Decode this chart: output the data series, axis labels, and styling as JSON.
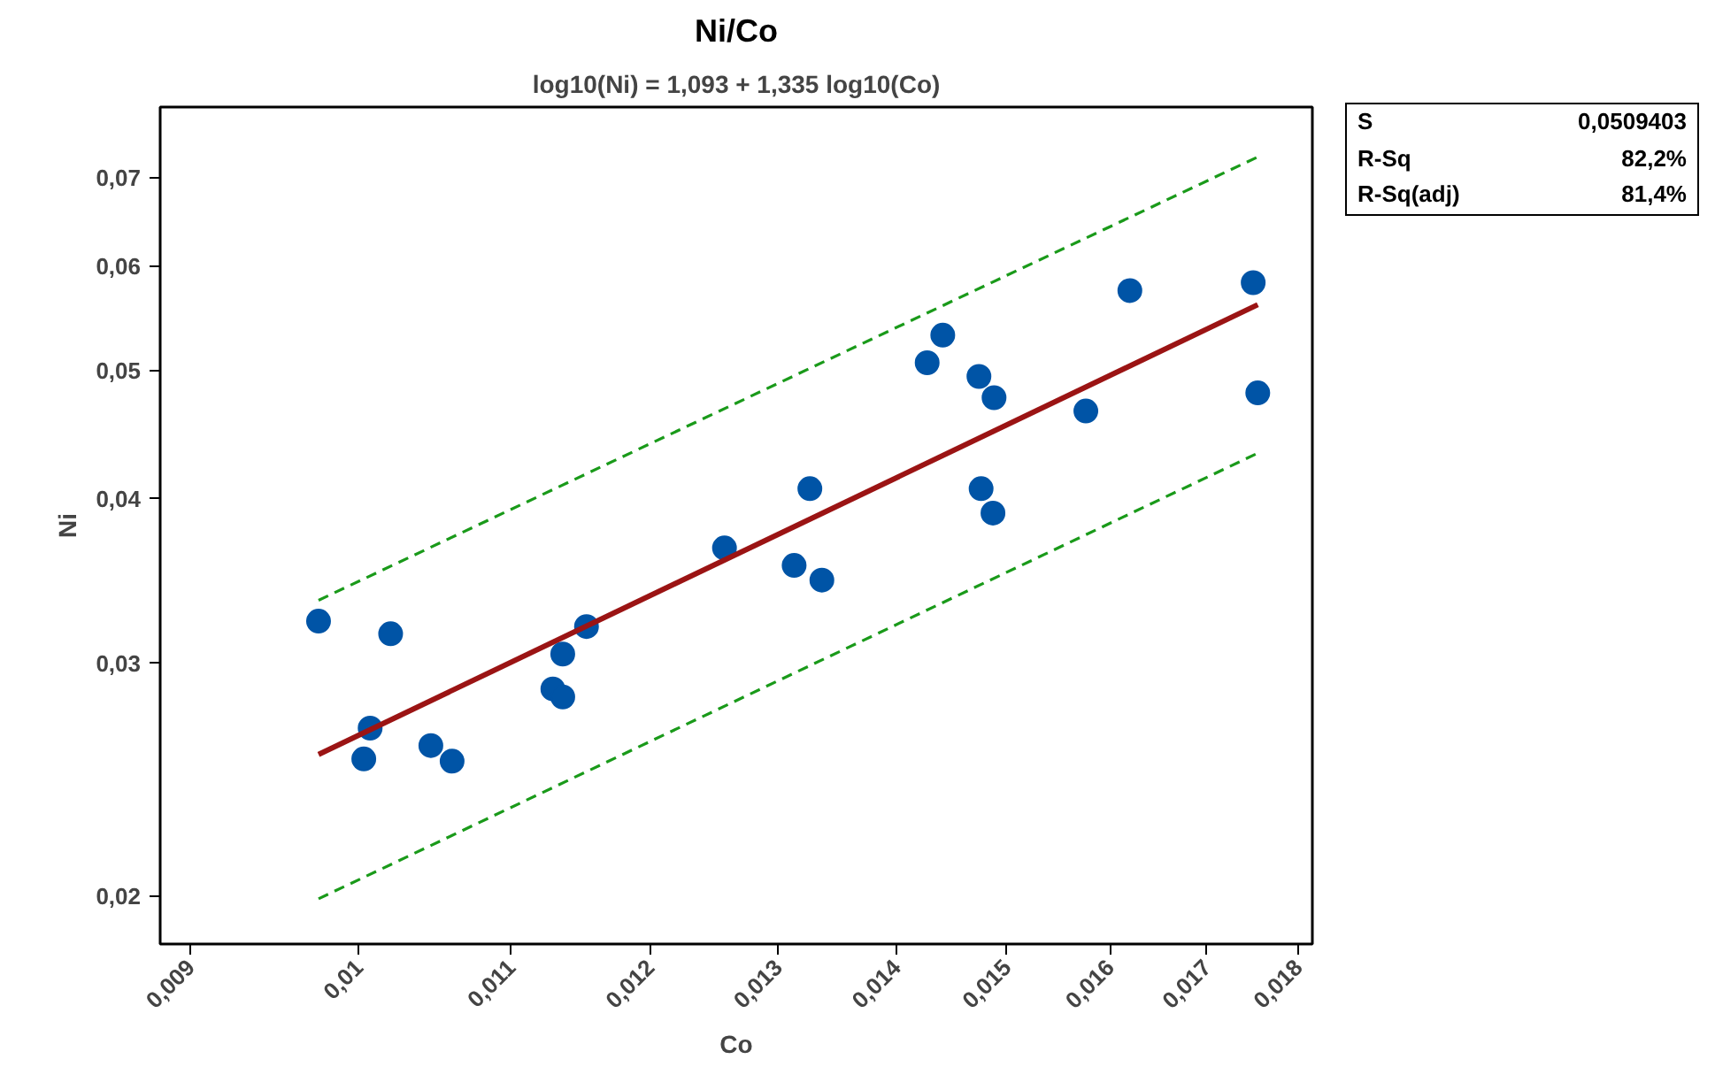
{
  "chart_data": {
    "type": "scatter",
    "title": "Ni/Co",
    "subtitle": "log10(Ni) = 1,093 + 1,335 log10(Co)",
    "xlabel": "Co",
    "ylabel": "Ni",
    "log": "xy",
    "grid": false,
    "xlim": [
      0.00883,
      0.01816
    ],
    "ylim": [
      0.01839,
      0.0792
    ],
    "xticks": [
      {
        "value": 0.009,
        "label": "0,009"
      },
      {
        "value": 0.01,
        "label": "0,01"
      },
      {
        "value": 0.011,
        "label": "0,011"
      },
      {
        "value": 0.012,
        "label": "0,012"
      },
      {
        "value": 0.013,
        "label": "0,013"
      },
      {
        "value": 0.014,
        "label": "0,014"
      },
      {
        "value": 0.015,
        "label": "0,015"
      },
      {
        "value": 0.016,
        "label": "0,016"
      },
      {
        "value": 0.017,
        "label": "0,017"
      },
      {
        "value": 0.018,
        "label": "0,018"
      }
    ],
    "yticks": [
      {
        "value": 0.02,
        "label": "0,02"
      },
      {
        "value": 0.03,
        "label": "0,03"
      },
      {
        "value": 0.04,
        "label": "0,04"
      },
      {
        "value": 0.05,
        "label": "0,05"
      },
      {
        "value": 0.06,
        "label": "0,06"
      },
      {
        "value": 0.07,
        "label": "0,07"
      }
    ],
    "series": [
      {
        "marker": "circle",
        "color": "#0054a6",
        "x": [
          0.00975,
          0.01007,
          0.01003,
          0.0102,
          0.01046,
          0.0106,
          0.01129,
          0.01136,
          0.01136,
          0.01153,
          0.01257,
          0.01313,
          0.01326,
          0.01336,
          0.01427,
          0.01441,
          0.01474,
          0.01488,
          0.01476,
          0.01487,
          0.01576,
          0.0162,
          0.0175,
          0.01755
        ],
        "values": [
          0.0323,
          0.0268,
          0.0254,
          0.0316,
          0.026,
          0.0253,
          0.0287,
          0.0283,
          0.0305,
          0.032,
          0.0367,
          0.0356,
          0.0407,
          0.0347,
          0.0507,
          0.0532,
          0.0495,
          0.0477,
          0.0407,
          0.039,
          0.0466,
          0.0575,
          0.0583,
          0.0481
        ]
      },
      {
        "type": "line",
        "color": "#9b1414",
        "line_style": "solid",
        "marker": "none",
        "x": [
          0.00975,
          0.01755
        ],
        "values": [
          0.0256,
          0.0561
        ]
      },
      {
        "type": "line",
        "color": "#1a9a1a",
        "line_style": "dashed",
        "marker": "none",
        "x": [
          0.00975,
          0.01755
        ],
        "values": [
          0.0335,
          0.0726
        ]
      },
      {
        "type": "line",
        "color": "#1a9a1a",
        "line_style": "dashed",
        "marker": "none",
        "x": [
          0.00975,
          0.01755
        ],
        "values": [
          0.0199,
          0.0433
        ]
      }
    ],
    "annotations": [
      "S",
      "0,0509403",
      "R-Sq",
      "82,2%",
      "R-Sq(adj)",
      "81,4%"
    ]
  }
}
